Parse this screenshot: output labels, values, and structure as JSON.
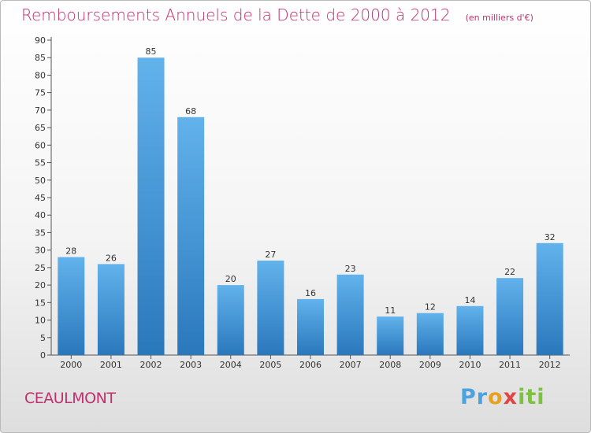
{
  "page": {
    "commune": "CEAULMONT",
    "brand": {
      "letters": [
        "Pr",
        "o",
        "x",
        "iti"
      ],
      "colors": [
        "#4aa3e0",
        "#e8a020",
        "#e04545",
        "#7cc240"
      ]
    }
  },
  "chart_data": {
    "type": "bar",
    "title": "Remboursements Annuels de la Dette de 2000 à 2012",
    "unit_label": "(en milliers d'€)",
    "xlabel": "",
    "ylabel": "",
    "categories": [
      "2000",
      "2001",
      "2002",
      "2003",
      "2004",
      "2005",
      "2006",
      "2007",
      "2008",
      "2009",
      "2010",
      "2011",
      "2012"
    ],
    "values": [
      28,
      26,
      85,
      68,
      20,
      27,
      16,
      23,
      11,
      12,
      14,
      22,
      32
    ],
    "ylim": [
      0,
      90
    ],
    "y_ticks": [
      0,
      5,
      10,
      15,
      20,
      25,
      30,
      35,
      40,
      45,
      50,
      55,
      60,
      65,
      70,
      75,
      80,
      85,
      90
    ],
    "grid": false,
    "bar_color_light": "#62b2ec",
    "bar_color_dark": "#2a78bc",
    "title_color": "#c1306e"
  }
}
